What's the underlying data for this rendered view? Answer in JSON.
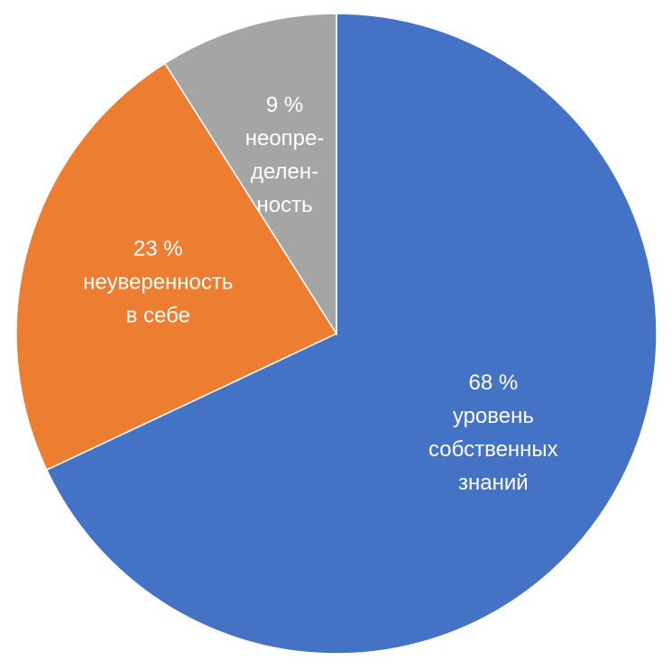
{
  "chart_data": {
    "type": "pie",
    "categories": [
      "уровень\nсобственных\nзнаний",
      "неуверенность\nв себе",
      "неопре-\nделен-\nность"
    ],
    "values": [
      68,
      23,
      9
    ],
    "value_labels": [
      "68 %",
      "23 %",
      "9 %"
    ],
    "colors": [
      "#4472c4",
      "#ed7d31",
      "#a5a5a5"
    ]
  }
}
